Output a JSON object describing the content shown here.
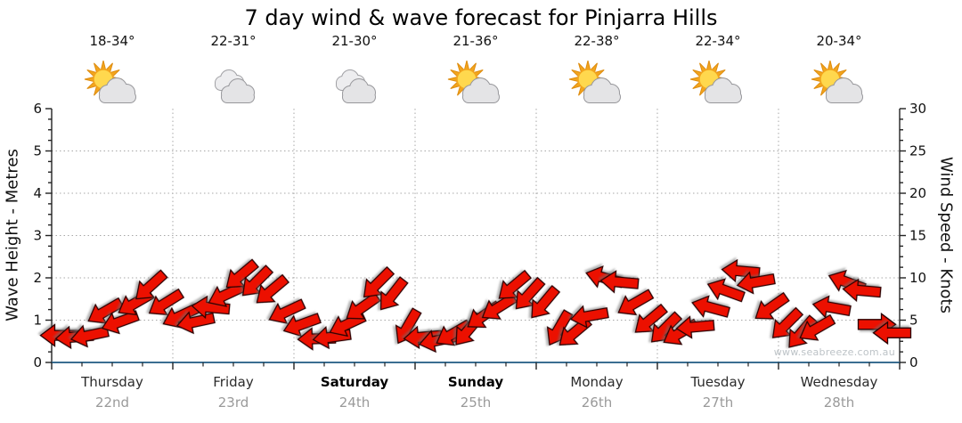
{
  "title": "7 day wind & wave forecast for Pinjarra Hills",
  "watermark": "www.seabreeze.com.au",
  "days": [
    {
      "name": "Thursday",
      "date": "22nd",
      "temp": "18-34°",
      "icon": "sun-cloud",
      "bold": false
    },
    {
      "name": "Friday",
      "date": "23rd",
      "temp": "22-31°",
      "icon": "clouds",
      "bold": false
    },
    {
      "name": "Saturday",
      "date": "24th",
      "temp": "21-30°",
      "icon": "clouds",
      "bold": true
    },
    {
      "name": "Sunday",
      "date": "25th",
      "temp": "21-36°",
      "icon": "sun-cloud",
      "bold": true
    },
    {
      "name": "Monday",
      "date": "26th",
      "temp": "22-38°",
      "icon": "sun-cloud",
      "bold": false
    },
    {
      "name": "Tuesday",
      "date": "27th",
      "temp": "22-34°",
      "icon": "sun-cloud",
      "bold": false
    },
    {
      "name": "Wednesday",
      "date": "28th",
      "temp": "20-34°",
      "icon": "sun-cloud",
      "bold": false
    }
  ],
  "left_axis": {
    "label": "Wave Height - Metres",
    "min": 0,
    "max": 6,
    "major_ticks": [
      0,
      1,
      2,
      3,
      4,
      5,
      6
    ],
    "minor_step": 0.25
  },
  "right_axis": {
    "label": "Wind Speed - Knots",
    "min": 0,
    "max": 30,
    "major_ticks": [
      0,
      5,
      10,
      15,
      20,
      25,
      30
    ],
    "minor_step": 1.25
  },
  "chart_data": {
    "type": "line",
    "subtype": "wind-direction-arrows",
    "title": "7 day wind & wave forecast for Pinjarra Hills",
    "x_categories": [
      "Thursday 22nd",
      "Friday 23rd",
      "Saturday 24th",
      "Sunday 25th",
      "Monday 26th",
      "Tuesday 27th",
      "Wednesday 28th"
    ],
    "slots_per_day": 8,
    "ylabel_left": "Wave Height - Metres",
    "ylabel_right": "Wind Speed - Knots",
    "ylim_left_metres": [
      0,
      6
    ],
    "ylim_right_knots": [
      0,
      30
    ],
    "grid": "dotted",
    "series": [
      {
        "name": "Wind Speed (knots, 3-hourly)",
        "values": [
          3.2,
          3.0,
          3.2,
          6.0,
          4.8,
          7.0,
          9.0,
          7.0,
          5.5,
          4.8,
          6.5,
          8.0,
          10.3,
          9.5,
          8.5,
          6.0,
          4.5,
          2.8,
          3.0,
          4.5,
          6.5,
          9.3,
          8.0,
          4.2,
          3.0,
          2.6,
          3.4,
          3.8,
          5.5,
          6.5,
          9.0,
          8.0,
          7.0,
          4.0,
          3.5,
          5.5,
          10.0,
          9.5,
          7.0,
          5.0,
          4.0,
          3.5,
          4.2,
          6.5,
          8.5,
          10.8,
          9.5,
          6.5,
          4.5,
          3.5,
          4.0,
          6.5,
          9.5,
          8.5,
          4.5,
          3.5
        ]
      },
      {
        "name": "Wind Direction (css deg, 0=E arrow pointing right, 90=down)",
        "values": [
          180,
          175,
          168,
          150,
          160,
          150,
          138,
          148,
          155,
          168,
          185,
          155,
          140,
          135,
          140,
          155,
          160,
          178,
          172,
          155,
          145,
          135,
          128,
          120,
          175,
          168,
          150,
          130,
          145,
          148,
          140,
          132,
          130,
          120,
          140,
          170,
          195,
          185,
          150,
          140,
          135,
          150,
          175,
          195,
          200,
          185,
          170,
          145,
          135,
          130,
          150,
          190,
          200,
          185,
          0,
          180
        ]
      }
    ]
  },
  "colors": {
    "arrow_fill": "#ec1000",
    "arrow_stroke": "#2a0000",
    "axis_line": "#222222",
    "bottom_axis_line": "#3a6e91",
    "gridline": "#a8a8a8",
    "date_text": "#9a9a9a",
    "watermark_text": "#bdc3c7",
    "sun_rays": "#f3a51d",
    "sun_disc": "#ffd84e",
    "cloud_fill": "#e4e4e6",
    "cloud_stroke": "#97979b"
  }
}
